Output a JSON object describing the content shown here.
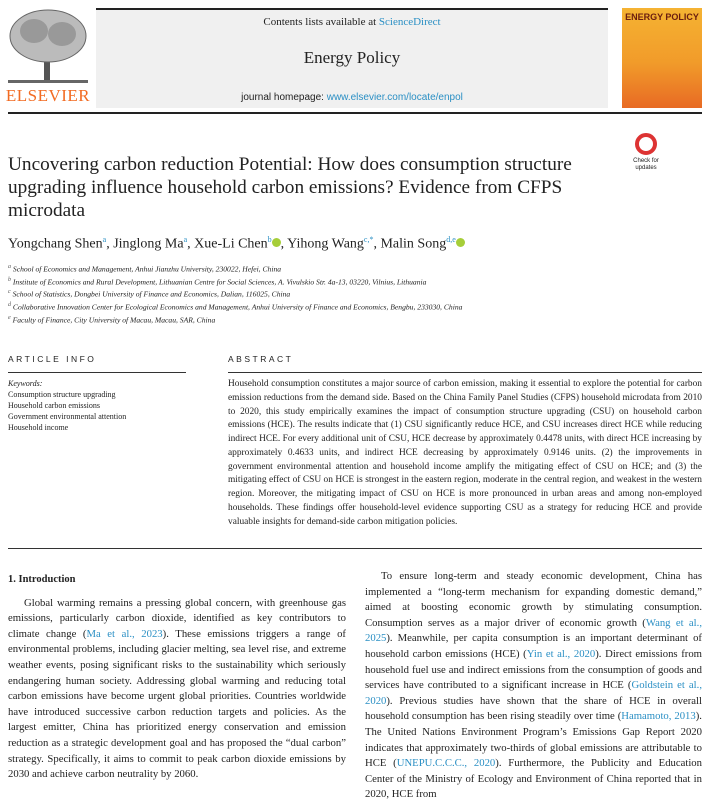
{
  "header": {
    "publisher_logo": "ELSEVIER",
    "contents_prefix": "Contents lists available at ",
    "contents_link": "ScienceDirect",
    "journal_title": "Energy Policy",
    "homepage_prefix": "journal homepage: ",
    "homepage_link": "www.elsevier.com/locate/enpol",
    "cover_title": "ENERGY POLICY",
    "check_updates": "Check for updates"
  },
  "article": {
    "title": "Uncovering carbon reduction Potential: How does consumption structure upgrading influence household carbon emissions? Evidence from CFPS microdata",
    "authors": [
      {
        "name": "Yongchang Shen",
        "sup": "a",
        "orcid": false
      },
      {
        "name": "Jinglong Ma",
        "sup": "a",
        "orcid": false
      },
      {
        "name": "Xue-Li Chen",
        "sup": "b",
        "orcid": true
      },
      {
        "name": "Yihong Wang",
        "sup": "c,*",
        "orcid": false
      },
      {
        "name": "Malin Song",
        "sup": "d,e",
        "orcid": true
      }
    ],
    "affiliations": [
      {
        "sup": "a",
        "text": "School of Economics and Management, Anhui Jianzhu University, 230022, Hefei, China"
      },
      {
        "sup": "b",
        "text": "Institute of Economics and Rural Development, Lithuanian Centre for Social Sciences, A. Vivulskio Str. 4a-13, 03220, Vilnius, Lithuania"
      },
      {
        "sup": "c",
        "text": "School of Statistics, Dongbei University of Finance and Economics, Dalian, 116025, China"
      },
      {
        "sup": "d",
        "text": "Collaborative Innovation Center for Ecological Economics and Management, Anhui University of Finance and Economics, Bengbu, 233030, China"
      },
      {
        "sup": "e",
        "text": "Faculty of Finance, City University of Macau, Macau, SAR, China"
      }
    ]
  },
  "article_info": {
    "heading": "ARTICLE INFO",
    "keywords_label": "Keywords:",
    "keywords": [
      "Consumption structure upgrading",
      "Household carbon emissions",
      "Government environmental attention",
      "Household income"
    ]
  },
  "abstract": {
    "heading": "ABSTRACT",
    "text": "Household consumption constitutes a major source of carbon emission, making it essential to explore the potential for carbon emission reductions from the demand side. Based on the China Family Panel Studies (CFPS) household microdata from 2010 to 2020, this study empirically examines the impact of consumption structure upgrading (CSU) on household carbon emissions (HCE). The results indicate that (1) CSU significantly reduce HCE, and CSU increases direct HCE while reducing indirect HCE. For every additional unit of CSU, HCE decrease by approximately 0.4478 units, with direct HCE increasing by approximately 0.4633 units, and indirect HCE decreasing by approximately 0.9146 units. (2) the improvements in government environmental attention and household income amplify the mitigating effect of CSU on HCE; and (3) the mitigating effect of CSU on HCE is strongest in the eastern region, moderate in the central region, and weakest in the western region. Moreover, the mitigating impact of CSU on HCE is more pronounced in urban areas and among non-employed households. These findings offer household-level evidence supporting CSU as a strategy for reducing HCE and provide valuable insights for demand-side carbon mitigation policies."
  },
  "body": {
    "section_heading": "1.  Introduction",
    "left_paragraph": [
      {
        "t": "Global warming remains a pressing global concern, with greenhouse gas emissions, particularly carbon dioxide, identified as key contributors to climate change ("
      },
      {
        "t": "Ma et al., 2023",
        "link": true
      },
      {
        "t": "). These emissions triggers a range of environmental problems, including glacier melting, sea level rise, and extreme weather events, posing significant risks to the sustainability which seriously endangering human society. Addressing global warming and reducing total carbon emissions have become urgent global priorities. Countries worldwide have introduced successive carbon reduction targets and policies. As the largest emitter, China has prioritized energy conservation and emission reduction as a strategic development goal and has proposed the “dual carbon” strategy. Specifically, it aims to commit to peak carbon dioxide emissions by 2030 and achieve carbon neutrality by 2060."
      }
    ],
    "right_paragraph": [
      {
        "t": "To ensure long-term and steady economic development, China has implemented a “long-term mechanism for expanding domestic demand,” aimed at boosting economic growth by stimulating consumption. Consumption serves as a major driver of economic growth ("
      },
      {
        "t": "Wang et al., 2025",
        "link": true
      },
      {
        "t": "). Meanwhile, per capita consumption is an important determinant of household carbon emissions (HCE) ("
      },
      {
        "t": "Yin et al., 2020",
        "link": true
      },
      {
        "t": "). Direct emissions from household fuel use and indirect emissions from the consumption of goods and services have contributed to a significant increase in HCE ("
      },
      {
        "t": "Goldstein et al., 2020",
        "link": true
      },
      {
        "t": "). Previous studies have shown that the share of HCE in overall household consumption has been rising steadily over time ("
      },
      {
        "t": "Hamamoto, 2013",
        "link": true
      },
      {
        "t": "). The United Nations Environment Program’s Emissions Gap Report 2020 indicates that approximately two-thirds of global emissions are attributable to HCE ("
      },
      {
        "t": "UNEPU.C.C.C., 2020",
        "link": true
      },
      {
        "t": "). Furthermore, the Publicity and Education Center of the Ministry of Ecology and Environment of China reported that in 2020, HCE from"
      }
    ]
  },
  "colors": {
    "link": "#2a8fc4",
    "elsevier_orange": "#f26b22",
    "orcid_green": "#a6ce39"
  }
}
